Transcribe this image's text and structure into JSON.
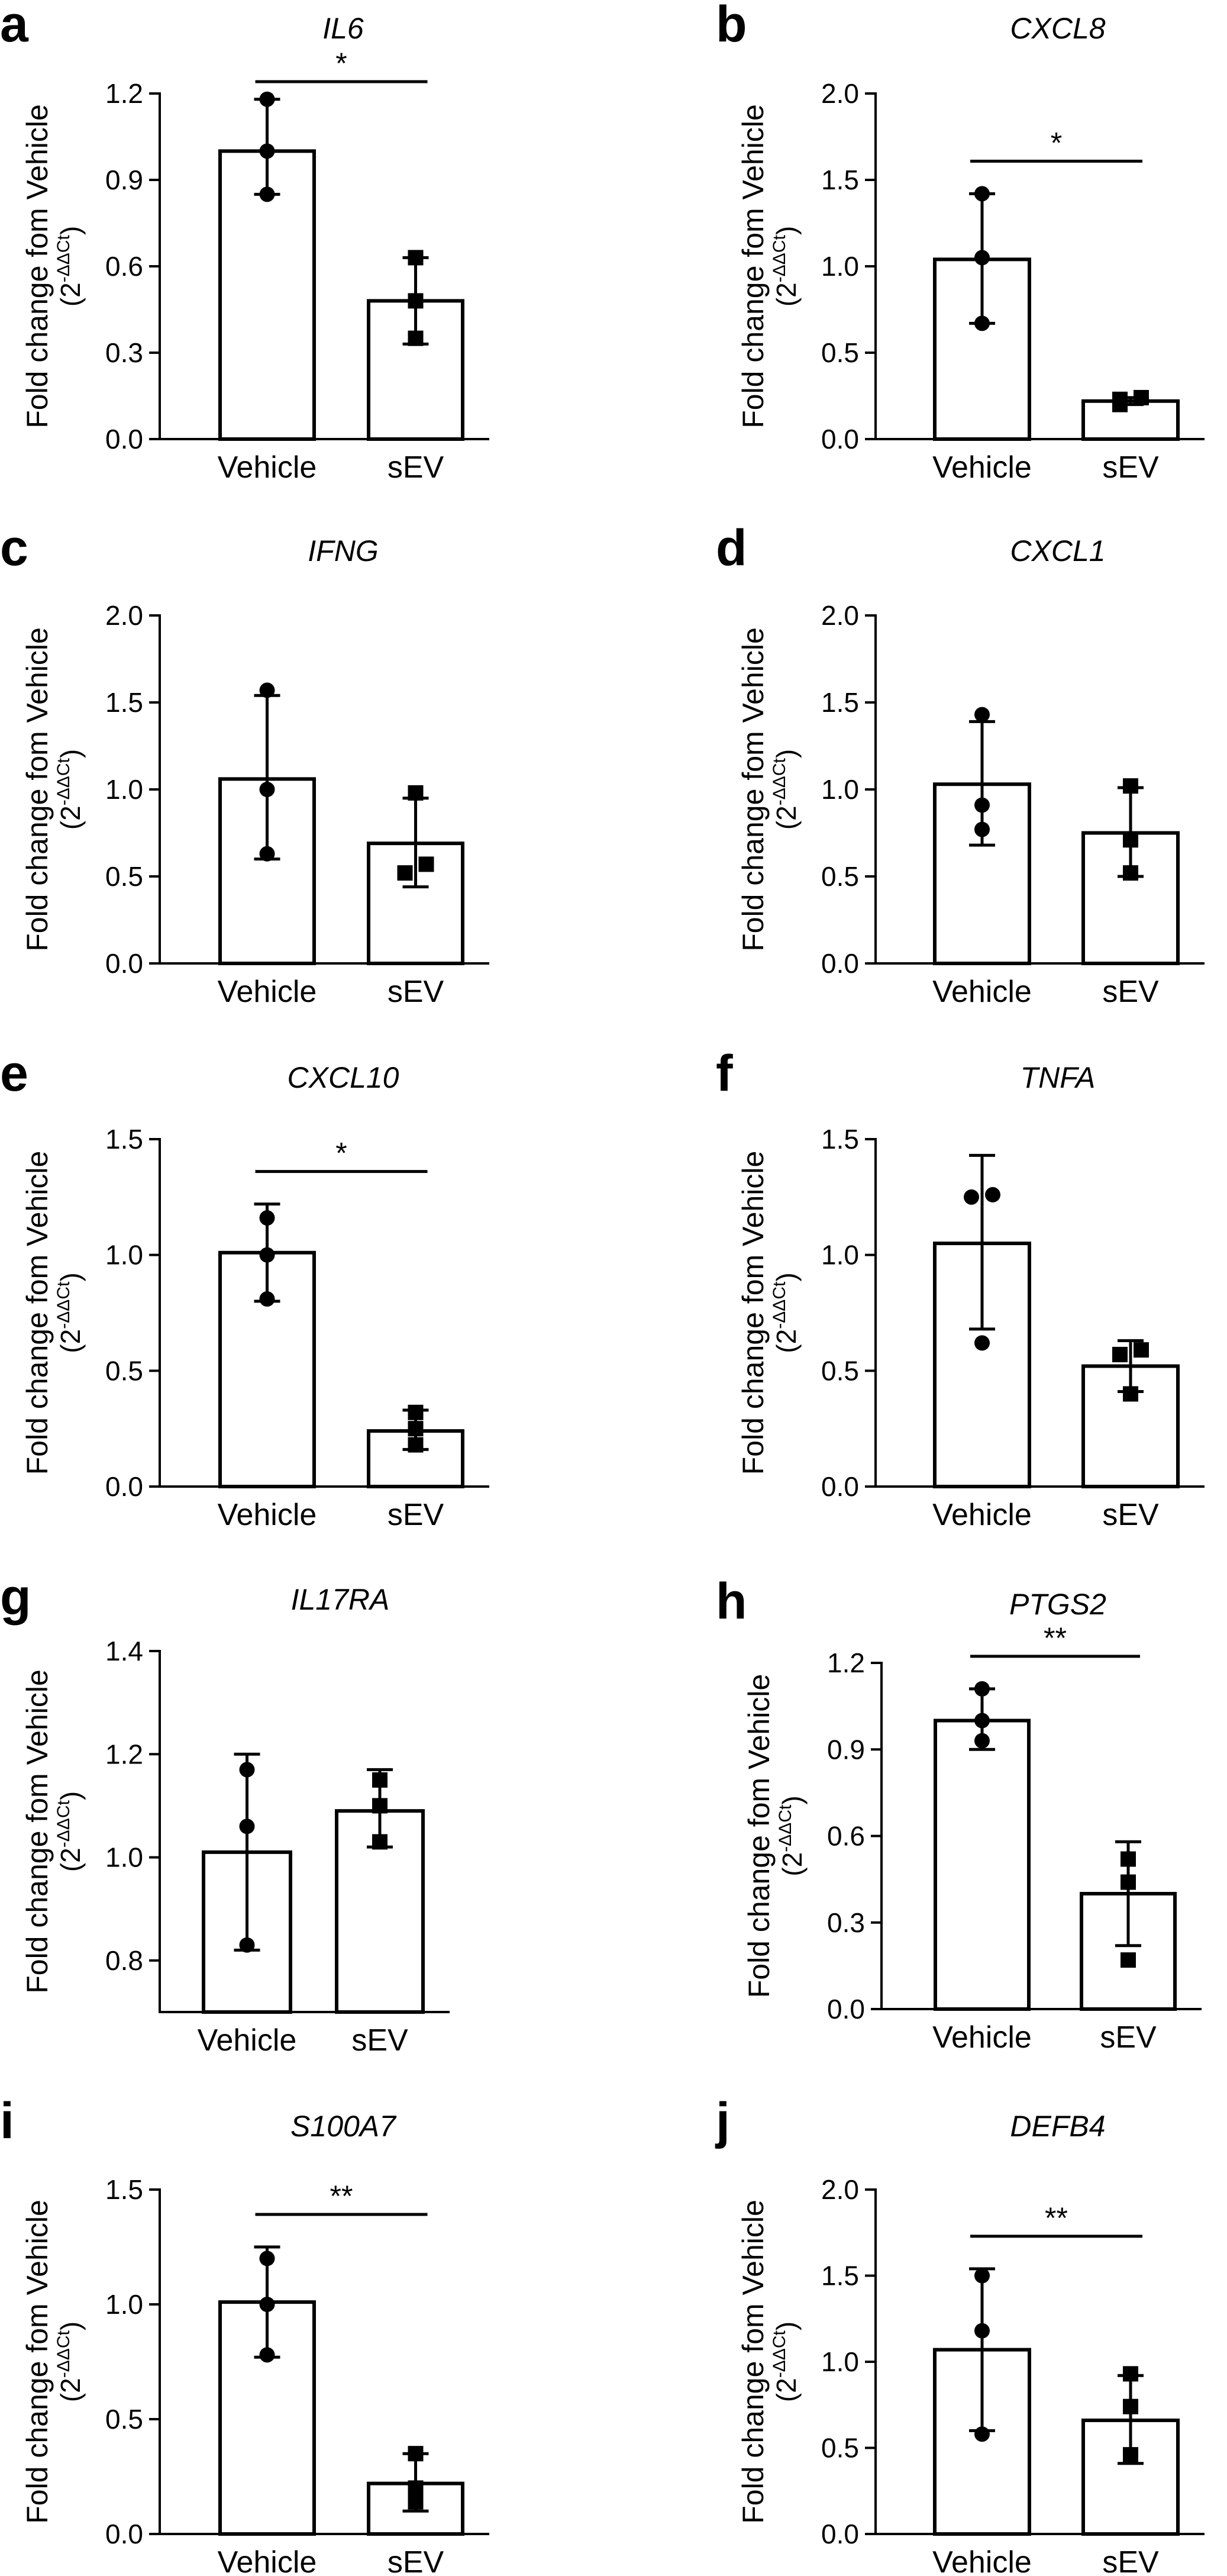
{
  "figure": {
    "ylabel": "Fold change fom Vehicle",
    "yunit_prefix": "(2",
    "yunit_sup": "-ΔΔCt",
    "yunit_suffix": ")"
  },
  "chart_data": [
    {
      "panel": "a",
      "type": "bar",
      "title": "IL6",
      "categories": [
        "Vehicle",
        "sEV"
      ],
      "ylim": [
        0,
        1.2
      ],
      "ticks": [
        0.0,
        0.3,
        0.6,
        0.9,
        1.2
      ],
      "tick_labels": [
        "0.0",
        "0.3",
        "0.6",
        "0.9",
        "1.2"
      ],
      "means": [
        1.0,
        0.48
      ],
      "errors": [
        [
          0.85,
          1.18
        ],
        [
          0.33,
          0.63
        ]
      ],
      "points": [
        [
          0.85,
          1.0,
          1.18
        ],
        [
          0.35,
          0.48,
          0.63
        ]
      ],
      "significance": "*"
    },
    {
      "panel": "b",
      "type": "bar",
      "title": "CXCL8",
      "categories": [
        "Vehicle",
        "sEV"
      ],
      "ylim": [
        0,
        2.0
      ],
      "ticks": [
        0.0,
        0.5,
        1.0,
        1.5,
        2.0
      ],
      "tick_labels": [
        "0.0",
        "0.5",
        "1.0",
        "1.5",
        "2.0"
      ],
      "means": [
        1.04,
        0.22
      ],
      "errors": [
        [
          0.67,
          1.42
        ],
        [
          0.2,
          0.24
        ]
      ],
      "points": [
        [
          0.67,
          1.05,
          1.42
        ],
        [
          0.2,
          0.23,
          0.24
        ]
      ],
      "significance": "*"
    },
    {
      "panel": "c",
      "type": "bar",
      "title": "IFNG",
      "categories": [
        "Vehicle",
        "sEV"
      ],
      "ylim": [
        0,
        2.0
      ],
      "ticks": [
        0.0,
        0.5,
        1.0,
        1.5,
        2.0
      ],
      "tick_labels": [
        "0.0",
        "0.5",
        "1.0",
        "1.5",
        "2.0"
      ],
      "means": [
        1.06,
        0.69
      ],
      "errors": [
        [
          0.6,
          1.54
        ],
        [
          0.44,
          0.95
        ]
      ],
      "points": [
        [
          0.63,
          1.0,
          1.57
        ],
        [
          0.52,
          0.57,
          0.98
        ]
      ],
      "significance": ""
    },
    {
      "panel": "d",
      "type": "bar",
      "title": "CXCL1",
      "categories": [
        "Vehicle",
        "sEV"
      ],
      "ylim": [
        0,
        2.0
      ],
      "ticks": [
        0.0,
        0.5,
        1.0,
        1.5,
        2.0
      ],
      "tick_labels": [
        "0.0",
        "0.5",
        "1.0",
        "1.5",
        "2.0"
      ],
      "means": [
        1.03,
        0.75
      ],
      "errors": [
        [
          0.68,
          1.39
        ],
        [
          0.5,
          1.01
        ]
      ],
      "points": [
        [
          0.77,
          0.91,
          1.43
        ],
        [
          0.52,
          0.71,
          1.02
        ]
      ],
      "significance": ""
    },
    {
      "panel": "e",
      "type": "bar",
      "title": "CXCL10",
      "categories": [
        "Vehicle",
        "sEV"
      ],
      "ylim": [
        0,
        1.5
      ],
      "ticks": [
        0.0,
        0.5,
        1.0,
        1.5
      ],
      "tick_labels": [
        "0.0",
        "0.5",
        "1.0",
        "1.5"
      ],
      "means": [
        1.01,
        0.24
      ],
      "errors": [
        [
          0.8,
          1.22
        ],
        [
          0.16,
          0.33
        ]
      ],
      "points": [
        [
          0.81,
          1.0,
          1.16
        ],
        [
          0.18,
          0.25,
          0.32
        ]
      ],
      "significance": "*"
    },
    {
      "panel": "f",
      "type": "bar",
      "title": "TNFA",
      "categories": [
        "Vehicle",
        "sEV"
      ],
      "ylim": [
        0,
        1.5
      ],
      "ticks": [
        0.0,
        0.5,
        1.0,
        1.5
      ],
      "tick_labels": [
        "0.0",
        "0.5",
        "1.0",
        "1.5"
      ],
      "means": [
        1.05,
        0.52
      ],
      "errors": [
        [
          0.68,
          1.43
        ],
        [
          0.41,
          0.63
        ]
      ],
      "points": [
        [
          0.62,
          1.25,
          1.26
        ],
        [
          0.4,
          0.57,
          0.59
        ]
      ],
      "significance": ""
    },
    {
      "panel": "g",
      "type": "bar",
      "title": "IL17RA",
      "categories": [
        "Vehicle",
        "sEV"
      ],
      "ylim": [
        0.7,
        1.4
      ],
      "ticks": [
        0.8,
        1.0,
        1.2,
        1.4
      ],
      "tick_labels": [
        "0.8",
        "1.0",
        "1.2",
        "1.4"
      ],
      "means": [
        1.01,
        1.09
      ],
      "errors": [
        [
          0.82,
          1.2
        ],
        [
          1.02,
          1.17
        ]
      ],
      "points": [
        [
          0.83,
          1.06,
          1.17
        ],
        [
          1.03,
          1.1,
          1.15
        ]
      ],
      "significance": ""
    },
    {
      "panel": "h",
      "type": "bar",
      "title": "PTGS2",
      "categories": [
        "Vehicle",
        "sEV"
      ],
      "ylim": [
        0,
        1.2
      ],
      "ticks": [
        0.0,
        0.3,
        0.6,
        0.9,
        1.2
      ],
      "tick_labels": [
        "0.0",
        "0.3",
        "0.6",
        "0.9",
        "1.2"
      ],
      "means": [
        1.0,
        0.4
      ],
      "errors": [
        [
          0.9,
          1.11
        ],
        [
          0.22,
          0.58
        ]
      ],
      "points": [
        [
          0.93,
          1.0,
          1.11
        ],
        [
          0.17,
          0.44,
          0.52
        ]
      ],
      "significance": "**"
    },
    {
      "panel": "i",
      "type": "bar",
      "title": "S100A7",
      "categories": [
        "Vehicle",
        "sEV"
      ],
      "ylim": [
        0,
        1.5
      ],
      "ticks": [
        0.0,
        0.5,
        1.0,
        1.5
      ],
      "tick_labels": [
        "0.0",
        "0.5",
        "1.0",
        "1.5"
      ],
      "means": [
        1.01,
        0.22
      ],
      "errors": [
        [
          0.77,
          1.25
        ],
        [
          0.1,
          0.35
        ]
      ],
      "points": [
        [
          0.78,
          1.0,
          1.2
        ],
        [
          0.14,
          0.2,
          0.35
        ]
      ],
      "significance": "**"
    },
    {
      "panel": "j",
      "type": "bar",
      "title": "DEFB4",
      "categories": [
        "Vehicle",
        "sEV"
      ],
      "ylim": [
        0,
        2.0
      ],
      "ticks": [
        0.0,
        0.5,
        1.0,
        1.5,
        2.0
      ],
      "tick_labels": [
        "0.0",
        "0.5",
        "1.0",
        "1.5",
        "2.0"
      ],
      "means": [
        1.07,
        0.66
      ],
      "errors": [
        [
          0.6,
          1.54
        ],
        [
          0.41,
          0.92
        ]
      ],
      "points": [
        [
          0.58,
          1.18,
          1.5
        ],
        [
          0.46,
          0.74,
          0.93
        ]
      ],
      "significance": "**"
    }
  ]
}
